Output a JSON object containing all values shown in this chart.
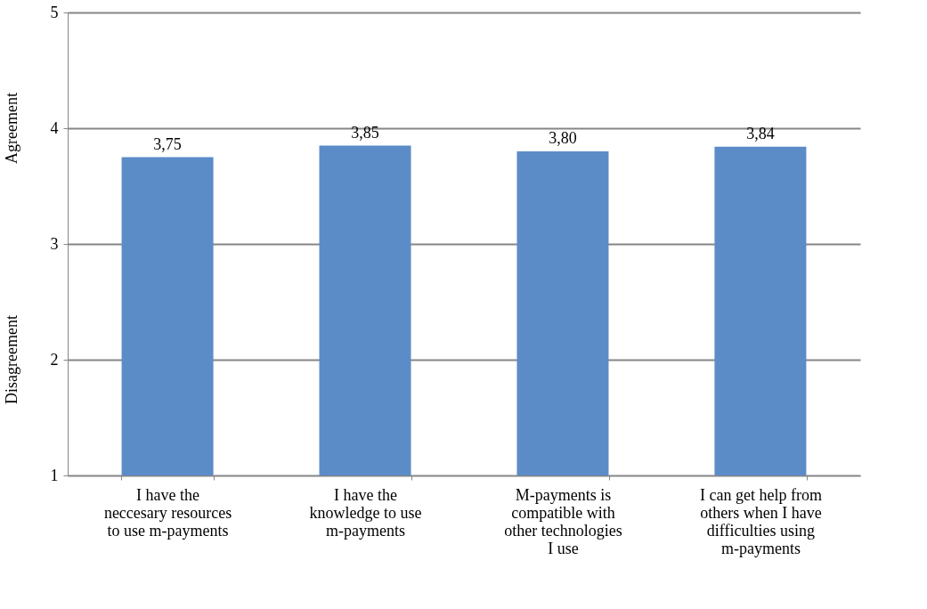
{
  "chart_data": {
    "type": "bar",
    "categories": [
      "I have the neccesary resources to use m-payments",
      "I have the knowledge to use m-payments",
      "M-payments is compatible with other technologies I use",
      "I can get help from others when I have difficulties using m-payments"
    ],
    "values": [
      3.75,
      3.85,
      3.8,
      3.84
    ],
    "value_labels": [
      "3,75",
      "3,85",
      "3,80",
      "3,84"
    ],
    "color": "#5b8cc8",
    "ylim": [
      1,
      5
    ],
    "yticks": [
      1,
      2,
      3,
      4,
      5
    ],
    "grid": "y",
    "annotations": [
      "Disagreement",
      "Agreement"
    ]
  }
}
